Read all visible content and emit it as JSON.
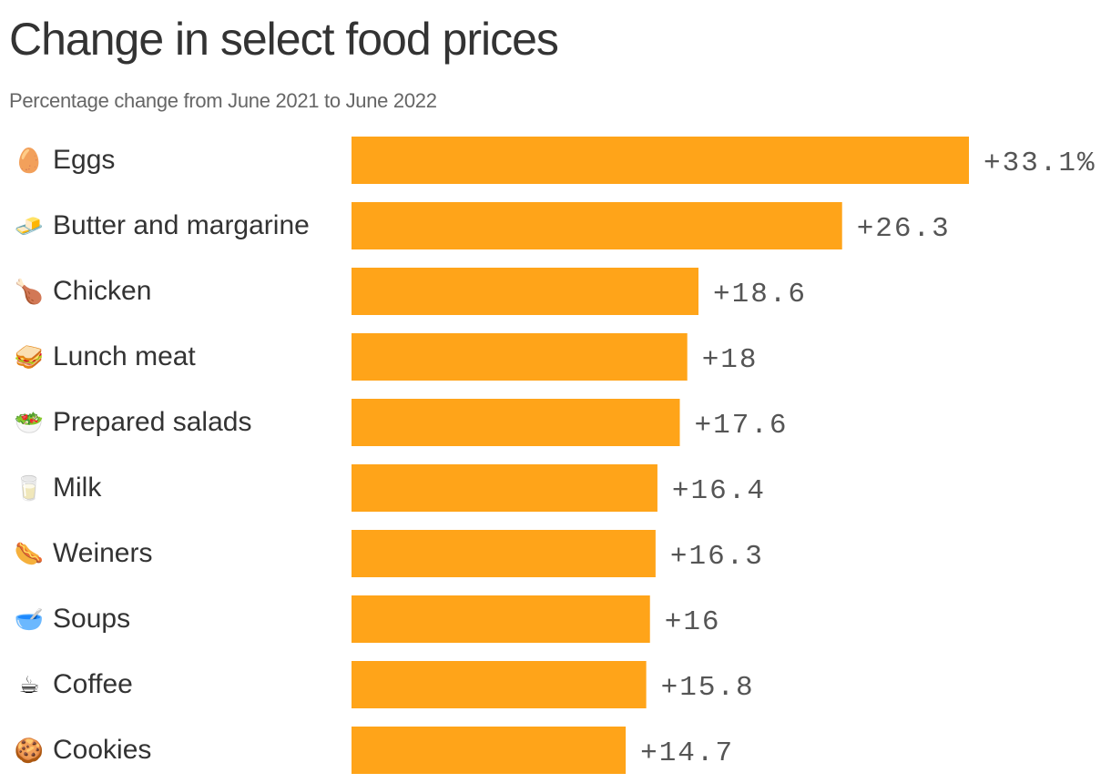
{
  "title": "Change in select food prices",
  "subtitle": "Percentage change from June 2021 to June 2022",
  "colors": {
    "bar": "#FFA419",
    "label": "#333333",
    "value": "#555555"
  },
  "chart_data": {
    "type": "bar",
    "orientation": "horizontal",
    "categories": [
      "Eggs",
      "Butter and margarine",
      "Chicken",
      "Lunch meat",
      "Prepared salads",
      "Milk",
      "Weiners",
      "Soups",
      "Coffee",
      "Cookies"
    ],
    "icons": [
      "🥚",
      "🧈",
      "🍗",
      "🥪",
      "🥗",
      "🥛",
      "🌭",
      "🥣",
      "☕",
      "🍪"
    ],
    "icon_names": [
      "egg-icon",
      "butter-icon",
      "chicken-leg-icon",
      "sandwich-icon",
      "salad-icon",
      "milk-glass-icon",
      "hot-dog-icon",
      "soup-bowl-icon",
      "coffee-icon",
      "cookie-icon"
    ],
    "values": [
      33.1,
      26.3,
      18.6,
      18,
      17.6,
      16.4,
      16.3,
      16,
      15.8,
      14.7
    ],
    "value_labels": [
      "+33.1%",
      "+26.3",
      "+18.6",
      "+18",
      "+17.6",
      "+16.4",
      "+16.3",
      "+16",
      "+15.8",
      "+14.7"
    ],
    "xlim": [
      0,
      33.1
    ],
    "grid": false,
    "legend": "none"
  }
}
